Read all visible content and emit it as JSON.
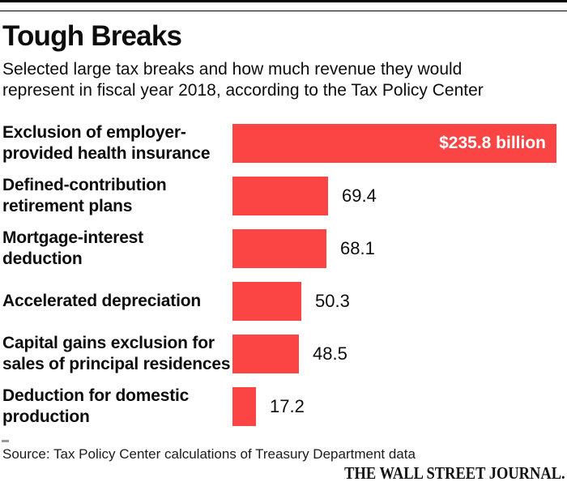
{
  "header": {
    "title": "Tough Breaks",
    "subtitle_line1": "Selected large tax breaks and how much revenue they would",
    "subtitle_line2": "represent in fiscal year 2018, according to the Tax Policy Center"
  },
  "chart_data": {
    "type": "bar",
    "orientation": "horizontal",
    "title": "Tough Breaks",
    "subtitle": "Selected large tax breaks and how much revenue they would represent in fiscal year 2018, according to the Tax Policy Center",
    "unit": "billions of dollars",
    "xlim": [
      0,
      235.8
    ],
    "grid": false,
    "legend": false,
    "bar_color": "#fb4545",
    "categories": [
      "Exclusion of employer-provided health insurance",
      "Defined-contribution retirement plans",
      "Mortgage-interest deduction",
      "Accelerated depreciation",
      "Capital gains exclusion for sales of principal residences",
      "Deduction for domestic production"
    ],
    "values": [
      235.8,
      69.4,
      68.1,
      50.3,
      48.5,
      17.2
    ],
    "bars": [
      {
        "label_lines": [
          "Exclusion of employer-",
          "provided health insurance"
        ],
        "value": 235.8,
        "value_label": "$235.8 billion",
        "value_inside": true
      },
      {
        "label_lines": [
          "Defined-contribution",
          "retirement plans"
        ],
        "value": 69.4,
        "value_label": "69.4",
        "value_inside": false
      },
      {
        "label_lines": [
          "Mortgage-interest",
          "deduction"
        ],
        "value": 68.1,
        "value_label": "68.1",
        "value_inside": false
      },
      {
        "label_lines": [
          "Accelerated depreciation"
        ],
        "value": 50.3,
        "value_label": "50.3",
        "value_inside": false
      },
      {
        "label_lines": [
          "Capital gains exclusion for",
          "sales of principal residences"
        ],
        "value": 48.5,
        "value_label": "48.5",
        "value_inside": false
      },
      {
        "label_lines": [
          "Deduction for domestic",
          "production"
        ],
        "value": 17.2,
        "value_label": "17.2",
        "value_inside": false
      }
    ]
  },
  "footer": {
    "source": "Source: Tax Policy Center calculations of Treasury Department data",
    "credit": "THE WALL STREET JOURNAL."
  }
}
